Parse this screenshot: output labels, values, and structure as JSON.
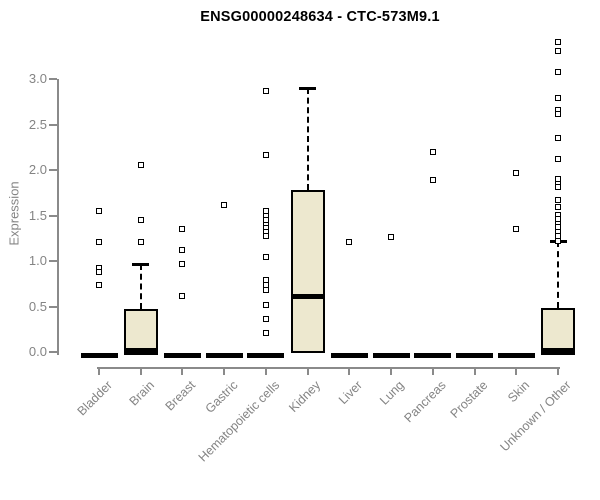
{
  "chart_data": {
    "type": "boxplot",
    "title": "ENSG00000248634 - CTC-573M9.1",
    "xlabel": "",
    "ylabel": "Expression",
    "ylim": [
      0,
      3.4
    ],
    "yticks": [
      0.0,
      0.5,
      1.0,
      1.5,
      2.0,
      2.5,
      3.0
    ],
    "grid": false,
    "legend": "none",
    "categories": [
      "Bladder",
      "Brain",
      "Breast",
      "Gastric",
      "Hematopoietic cells",
      "Kidney",
      "Liver",
      "Lung",
      "Pancreas",
      "Prostate",
      "Skin",
      "Unknown / Other"
    ],
    "series": [
      {
        "name": "Bladder",
        "q1": 0,
        "median": 0,
        "q3": 0,
        "whisker_low": 0,
        "whisker_high": 0,
        "outliers": [
          1.55,
          1.21,
          0.92,
          0.88,
          0.74
        ]
      },
      {
        "name": "Brain",
        "q1": 0,
        "median": 0.02,
        "q3": 0.47,
        "whisker_low": 0,
        "whisker_high": 0.97,
        "outliers": [
          2.05,
          1.45,
          1.21
        ]
      },
      {
        "name": "Breast",
        "q1": 0,
        "median": 0,
        "q3": 0,
        "whisker_low": 0,
        "whisker_high": 0,
        "outliers": [
          1.35,
          1.12,
          0.97,
          0.62
        ]
      },
      {
        "name": "Gastric",
        "q1": 0,
        "median": 0,
        "q3": 0,
        "whisker_low": 0,
        "whisker_high": 0,
        "outliers": [
          1.61
        ]
      },
      {
        "name": "Hematopoietic cells",
        "q1": 0,
        "median": 0,
        "q3": 0,
        "whisker_low": 0,
        "whisker_high": 0,
        "outliers": [
          2.87,
          2.16,
          1.55,
          1.5,
          1.45,
          1.4,
          1.36,
          1.32,
          1.27,
          1.04,
          0.79,
          0.74,
          0.68,
          0.52,
          0.36,
          0.21
        ]
      },
      {
        "name": "Kidney",
        "q1": 0.02,
        "median": 0.62,
        "q3": 1.78,
        "whisker_low": 0.02,
        "whisker_high": 2.9,
        "outliers": []
      },
      {
        "name": "Liver",
        "q1": 0,
        "median": 0,
        "q3": 0,
        "whisker_low": 0,
        "whisker_high": 0,
        "outliers": [
          1.21
        ]
      },
      {
        "name": "Lung",
        "q1": 0,
        "median": 0,
        "q3": 0,
        "whisker_low": 0,
        "whisker_high": 0,
        "outliers": [
          1.26
        ]
      },
      {
        "name": "Pancreas",
        "q1": 0,
        "median": 0,
        "q3": 0,
        "whisker_low": 0,
        "whisker_high": 0,
        "outliers": [
          2.2,
          1.89
        ]
      },
      {
        "name": "Prostate",
        "q1": 0,
        "median": 0,
        "q3": 0,
        "whisker_low": 0,
        "whisker_high": 0,
        "outliers": []
      },
      {
        "name": "Skin",
        "q1": 0,
        "median": 0,
        "q3": 0,
        "whisker_low": 0,
        "whisker_high": 0,
        "outliers": [
          1.97,
          1.35
        ]
      },
      {
        "name": "Unknown / Other",
        "q1": 0,
        "median": 0.02,
        "q3": 0.48,
        "whisker_low": 0,
        "whisker_high": 1.22,
        "outliers": [
          3.41,
          3.31,
          3.08,
          2.79,
          2.66,
          2.62,
          2.35,
          2.12,
          1.9,
          1.85,
          1.81,
          1.67,
          1.59,
          1.51,
          1.46,
          1.41,
          1.37,
          1.32,
          1.28,
          1.22
        ]
      }
    ],
    "colors": {
      "box_fill": "#ede8cf",
      "box_border": "#000000",
      "median": "#000000",
      "whisker": "#000000",
      "axis": "#8a8a8a",
      "tick_label": "#848484",
      "title": "#000000",
      "background": "#ffffff"
    }
  }
}
